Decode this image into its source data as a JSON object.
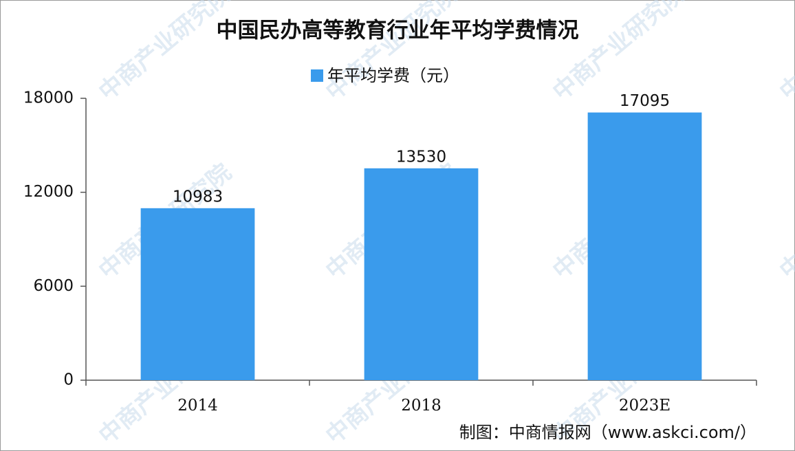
{
  "chart_data": {
    "type": "bar",
    "title": "中国民办高等教育行业年平均学费情况",
    "legend": "年平均学费（元）",
    "categories": [
      "2014",
      "2018",
      "2023E"
    ],
    "values": [
      10983,
      13530,
      17095
    ],
    "color": "#3a9bec",
    "ylim": [
      0,
      18000
    ],
    "yticks": [
      0,
      6000,
      12000,
      18000
    ],
    "grid": false,
    "source": "制图：中商情报网（www.askci.com/）",
    "watermark": "中商产业研究院"
  }
}
